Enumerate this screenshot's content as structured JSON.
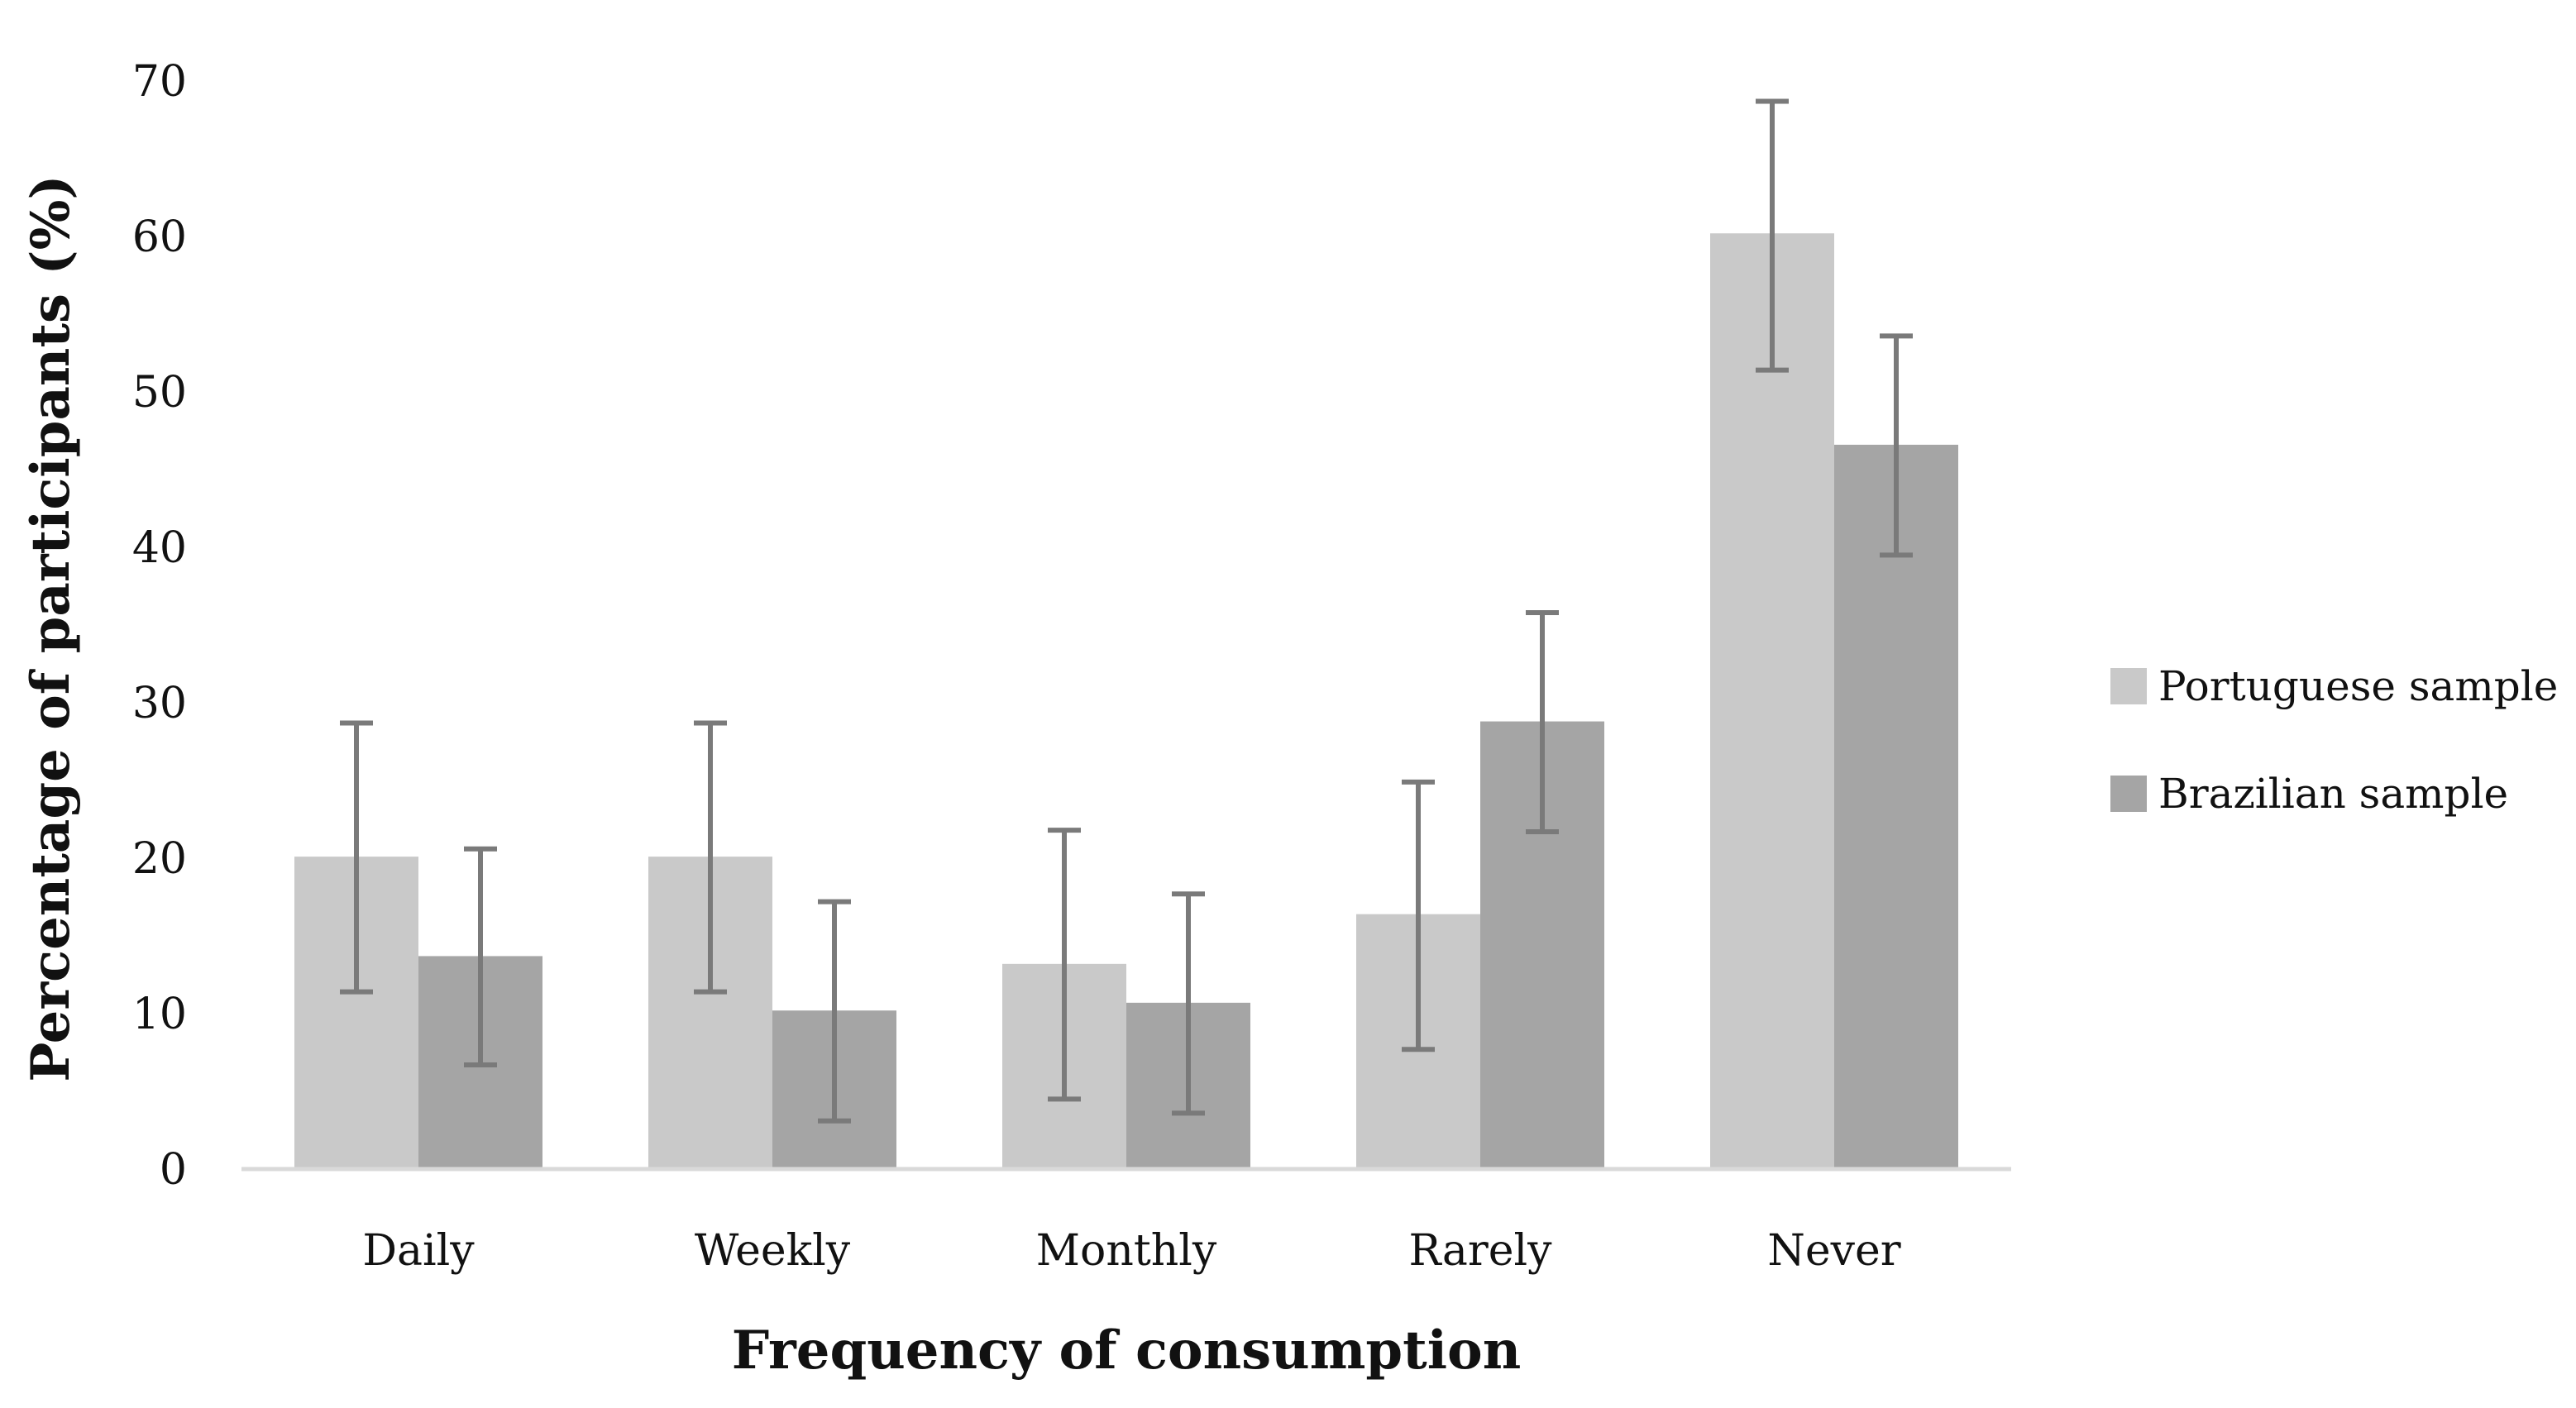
{
  "chart_data": {
    "type": "bar",
    "title": "",
    "xlabel": "Frequency of consumption",
    "ylabel": "Percentage of participants (%)",
    "ylim": [
      0,
      70
    ],
    "yticks": [
      0,
      10,
      20,
      30,
      40,
      50,
      60,
      70
    ],
    "ytick_labels": [
      "0",
      "10",
      "20",
      "30",
      "40",
      "50",
      "60",
      "70"
    ],
    "categories": [
      "Daily",
      "Weekly",
      "Monthly",
      "Rarely",
      "Never"
    ],
    "grid": false,
    "legend_position": "right",
    "series": [
      {
        "name": "Portuguese sample",
        "color": "#c9c9c9",
        "values": [
          20.1,
          20.1,
          13.2,
          16.4,
          60.2
        ],
        "error_low": [
          11.4,
          11.4,
          4.5,
          7.7,
          51.4
        ],
        "error_high": [
          28.7,
          28.7,
          21.8,
          24.9,
          68.7
        ]
      },
      {
        "name": "Brazilian sample",
        "color": "#a5a5a5",
        "values": [
          13.7,
          10.2,
          10.7,
          28.8,
          46.6
        ],
        "error_low": [
          6.7,
          3.1,
          3.6,
          21.7,
          39.5
        ],
        "error_high": [
          20.6,
          17.2,
          17.7,
          35.8,
          53.6
        ]
      }
    ],
    "error_bar_color": "#7a7a7a",
    "axis_color": "#d9d9d9"
  }
}
